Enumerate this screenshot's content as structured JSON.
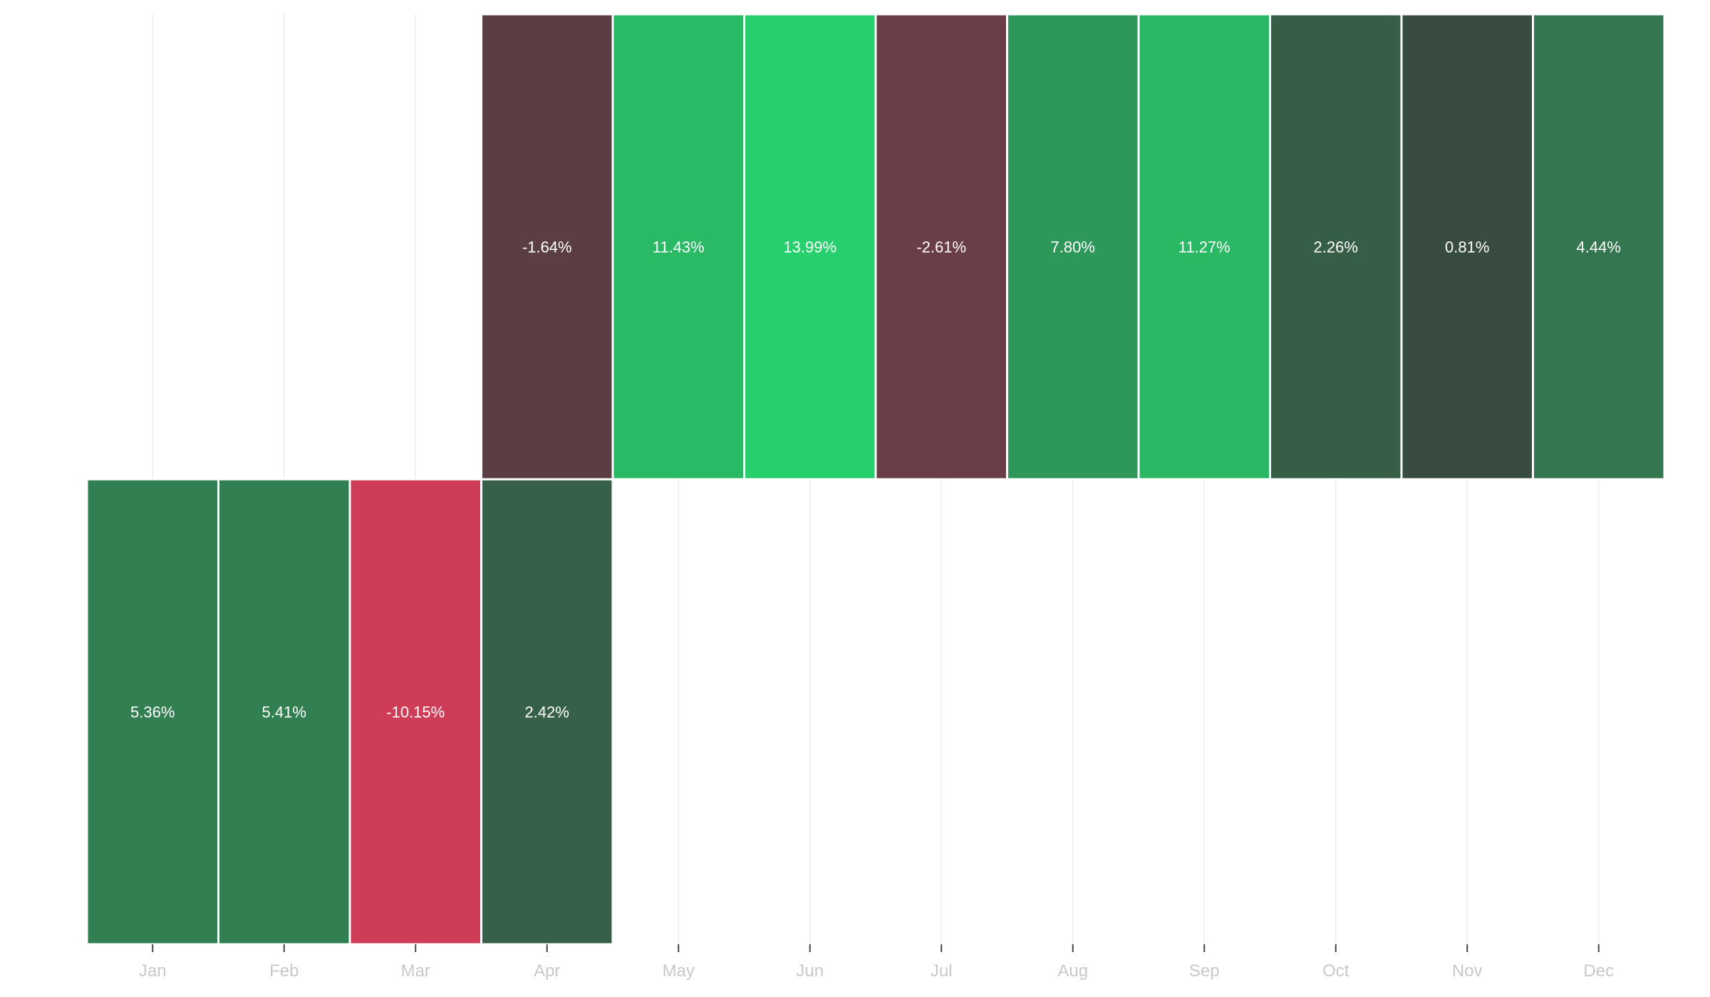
{
  "chart_data": {
    "type": "heatmap",
    "title": "",
    "xlabel": "",
    "ylabel": "",
    "x": [
      "Jan",
      "Feb",
      "Mar",
      "Apr",
      "May",
      "Jun",
      "Jul",
      "Aug",
      "Sep",
      "Oct",
      "Nov",
      "Dec"
    ],
    "rows": [
      {
        "values": [
          null,
          null,
          null,
          -1.64,
          11.43,
          13.99,
          -2.61,
          7.8,
          11.27,
          2.26,
          0.81,
          4.44
        ],
        "labels": [
          "",
          "",
          "",
          "-1.64%",
          "11.43%",
          "13.99%",
          "-2.61%",
          "7.80%",
          "11.27%",
          "2.26%",
          "0.81%",
          "4.44%"
        ]
      },
      {
        "values": [
          5.36,
          5.41,
          -10.15,
          2.42,
          null,
          null,
          null,
          null,
          null,
          null,
          null,
          null
        ],
        "labels": [
          "5.36%",
          "5.41%",
          "-10.15%",
          "2.42%",
          "",
          "",
          "",
          "",
          "",
          "",
          "",
          ""
        ]
      }
    ],
    "colors": {
      "negative_max": "#cf3c58",
      "neutral": "#3a3f3d",
      "positive_max": "#27d06c"
    },
    "grid": true
  }
}
